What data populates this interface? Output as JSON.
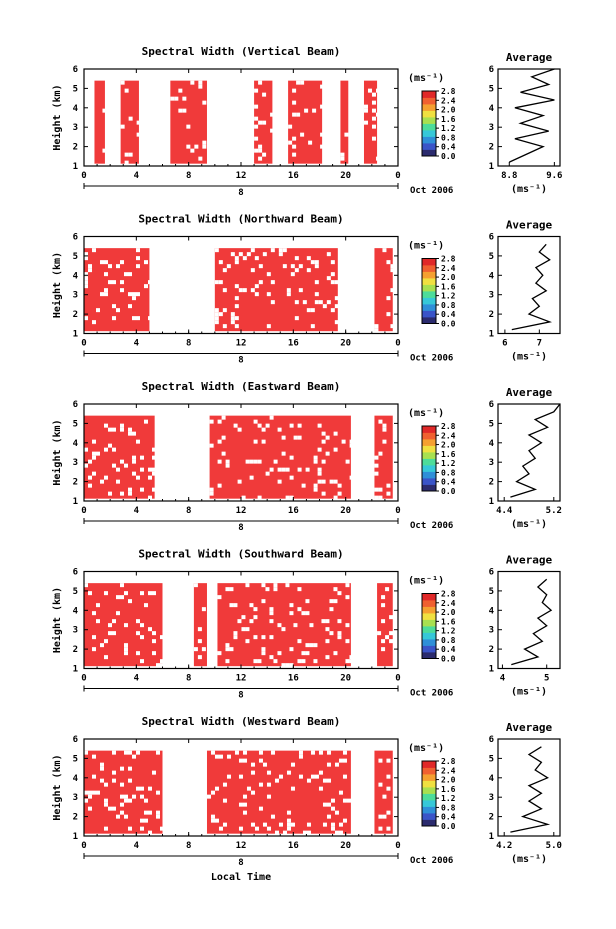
{
  "figure": {
    "xlabel": "Local Time",
    "date_label": "Oct 2006",
    "cb_unit": "(ms⁻¹)",
    "avg_title": "Average",
    "avg_xlabel": "(ms⁻¹)",
    "ylabel": "Height (km)",
    "day_marker": "8"
  },
  "colors": {
    "primary": "#f03a3a",
    "background": "#ffffff",
    "axis": "#000000"
  },
  "chart_data": [
    {
      "type": "heatmap",
      "title": "Spectral Width (Vertical Beam)",
      "xlabel": "Local Time",
      "ylabel": "Height (km)",
      "x_ticks": [
        "0",
        "4",
        "8",
        "12",
        "16",
        "20",
        "0"
      ],
      "x_range": [
        0,
        24
      ],
      "y_ticks": [
        "1",
        "2",
        "3",
        "4",
        "5",
        "6"
      ],
      "y_range": [
        1,
        6
      ],
      "colorbar_ticks": [
        "0.0",
        "0.4",
        "0.8",
        "1.2",
        "1.6",
        "2.0",
        "2.4",
        "2.8"
      ],
      "data_intervals": [
        [
          0.8,
          1.6
        ],
        [
          2.8,
          4.2
        ],
        [
          6.6,
          9.4
        ],
        [
          13.0,
          14.4
        ],
        [
          15.6,
          18.2
        ],
        [
          19.6,
          20.2
        ],
        [
          21.4,
          22.4
        ]
      ],
      "data_top_km": 5.4,
      "average_profile": {
        "x_ticks": [
          "8.8",
          "9.6"
        ],
        "x_range": [
          8.6,
          9.7
        ],
        "height_km": [
          1.2,
          1.6,
          2.0,
          2.4,
          2.8,
          3.2,
          3.6,
          4.0,
          4.4,
          4.8,
          5.2,
          5.6,
          6.0
        ],
        "width_ms": [
          8.8,
          9.1,
          9.4,
          8.9,
          9.5,
          9.0,
          9.4,
          8.9,
          9.6,
          9.0,
          9.5,
          9.2,
          9.6
        ]
      }
    },
    {
      "type": "heatmap",
      "title": "Spectral Width (Northward Beam)",
      "xlabel": "Local Time",
      "ylabel": "Height (km)",
      "x_ticks": [
        "0",
        "4",
        "8",
        "12",
        "16",
        "20",
        "0"
      ],
      "x_range": [
        0,
        24
      ],
      "y_ticks": [
        "1",
        "2",
        "3",
        "4",
        "5",
        "6"
      ],
      "y_range": [
        1,
        6
      ],
      "colorbar_ticks": [
        "0.0",
        "0.4",
        "0.8",
        "1.2",
        "1.6",
        "2.0",
        "2.4",
        "2.8"
      ],
      "data_intervals": [
        [
          0.0,
          5.0
        ],
        [
          10.0,
          19.4
        ],
        [
          22.2,
          23.6
        ]
      ],
      "data_top_km": 5.4,
      "average_profile": {
        "x_ticks": [
          "6",
          "7"
        ],
        "x_range": [
          5.8,
          7.6
        ],
        "height_km": [
          1.2,
          1.6,
          2.0,
          2.4,
          2.8,
          3.2,
          3.6,
          4.0,
          4.4,
          4.8,
          5.2,
          5.6
        ],
        "width_ms": [
          6.2,
          7.3,
          6.7,
          7.0,
          6.8,
          7.2,
          6.9,
          7.1,
          6.9,
          7.3,
          7.0,
          7.2
        ]
      }
    },
    {
      "type": "heatmap",
      "title": "Spectral Width (Eastward Beam)",
      "xlabel": "Local Time",
      "ylabel": "Height (km)",
      "x_ticks": [
        "0",
        "4",
        "8",
        "12",
        "16",
        "20",
        "0"
      ],
      "x_range": [
        0,
        24
      ],
      "y_ticks": [
        "1",
        "2",
        "3",
        "4",
        "5",
        "6"
      ],
      "y_range": [
        1,
        6
      ],
      "colorbar_ticks": [
        "0.0",
        "0.4",
        "0.8",
        "1.2",
        "1.6",
        "2.0",
        "2.4",
        "2.8"
      ],
      "data_intervals": [
        [
          0.0,
          5.4
        ],
        [
          9.6,
          20.4
        ],
        [
          22.2,
          23.6
        ]
      ],
      "data_top_km": 5.4,
      "average_profile": {
        "x_ticks": [
          "4.4",
          "5.2"
        ],
        "x_range": [
          4.3,
          5.3
        ],
        "height_km": [
          1.2,
          1.6,
          2.0,
          2.4,
          2.8,
          3.2,
          3.6,
          4.0,
          4.4,
          4.8,
          5.2,
          5.6,
          6.0
        ],
        "width_ms": [
          4.5,
          4.9,
          4.6,
          4.8,
          4.7,
          4.9,
          4.8,
          5.0,
          4.8,
          5.1,
          4.9,
          5.2,
          5.3
        ]
      }
    },
    {
      "type": "heatmap",
      "title": "Spectral Width (Southward Beam)",
      "xlabel": "Local Time",
      "ylabel": "Height (km)",
      "x_ticks": [
        "0",
        "4",
        "8",
        "12",
        "16",
        "20",
        "0"
      ],
      "x_range": [
        0,
        24
      ],
      "y_ticks": [
        "1",
        "2",
        "3",
        "4",
        "5",
        "6"
      ],
      "y_range": [
        1,
        6
      ],
      "colorbar_ticks": [
        "0.0",
        "0.4",
        "0.8",
        "1.2",
        "1.6",
        "2.0",
        "2.4",
        "2.8"
      ],
      "data_intervals": [
        [
          0.0,
          6.0
        ],
        [
          8.4,
          9.4
        ],
        [
          10.2,
          20.4
        ],
        [
          22.4,
          23.6
        ]
      ],
      "data_top_km": 5.4,
      "average_profile": {
        "x_ticks": [
          "4",
          "5"
        ],
        "x_range": [
          3.9,
          5.3
        ],
        "height_km": [
          1.2,
          1.6,
          2.0,
          2.4,
          2.8,
          3.2,
          3.6,
          4.0,
          4.4,
          4.8,
          5.2,
          5.6
        ],
        "width_ms": [
          4.2,
          4.8,
          4.5,
          4.9,
          4.7,
          5.0,
          4.8,
          5.1,
          4.9,
          5.0,
          4.8,
          5.0
        ]
      }
    },
    {
      "type": "heatmap",
      "title": "Spectral Width (Westward Beam)",
      "xlabel": "Local Time",
      "ylabel": "Height (km)",
      "x_ticks": [
        "0",
        "4",
        "8",
        "12",
        "16",
        "20",
        "0"
      ],
      "x_range": [
        0,
        24
      ],
      "y_ticks": [
        "1",
        "2",
        "3",
        "4",
        "5",
        "6"
      ],
      "y_range": [
        1,
        6
      ],
      "colorbar_ticks": [
        "0.0",
        "0.4",
        "0.8",
        "1.2",
        "1.6",
        "2.0",
        "2.4",
        "2.8"
      ],
      "data_intervals": [
        [
          0.0,
          6.0
        ],
        [
          9.4,
          20.4
        ],
        [
          22.2,
          23.6
        ]
      ],
      "data_top_km": 5.4,
      "average_profile": {
        "x_ticks": [
          "4.2",
          "5.0"
        ],
        "x_range": [
          4.1,
          5.1
        ],
        "height_km": [
          1.2,
          1.6,
          2.0,
          2.4,
          2.8,
          3.2,
          3.6,
          4.0,
          4.4,
          4.8,
          5.2,
          5.6
        ],
        "width_ms": [
          4.3,
          4.9,
          4.5,
          4.8,
          4.6,
          4.8,
          4.6,
          4.9,
          4.7,
          4.8,
          4.6,
          4.8
        ]
      }
    }
  ]
}
